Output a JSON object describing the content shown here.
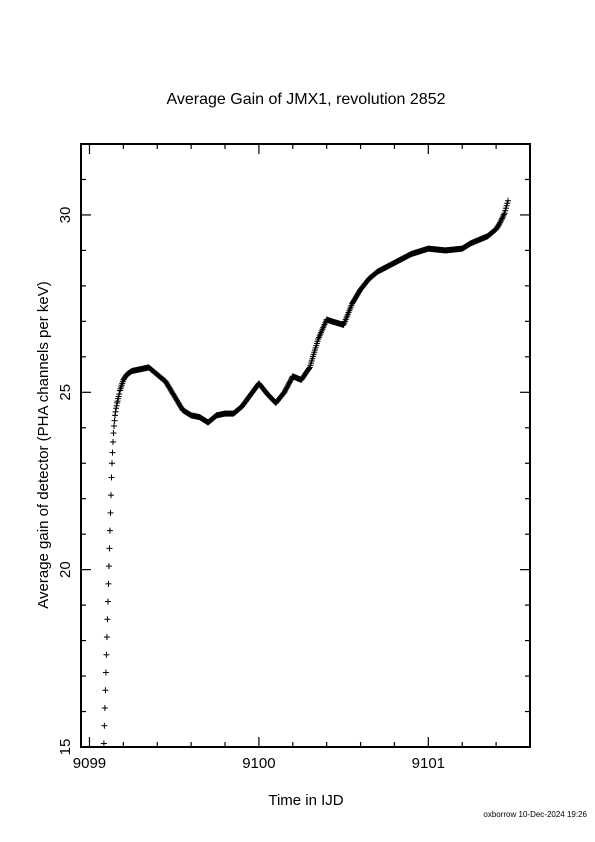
{
  "chart_data": {
    "type": "scatter",
    "title": "Average Gain of JMX1, revolution 2852",
    "xlabel": "Time in IJD",
    "ylabel": "Average gain of detector (PHA channels per keV)",
    "xlim": [
      9098.95,
      9101.6
    ],
    "ylim": [
      15,
      32
    ],
    "xticks": [
      9099,
      9100,
      9101
    ],
    "xtick_labels": [
      "9099",
      "9100",
      "9101"
    ],
    "yticks": [
      15,
      20,
      25,
      30
    ],
    "ytick_labels": [
      "15",
      "20",
      "25",
      "30"
    ],
    "marker": "+",
    "marker_color": "#000000",
    "grid": false,
    "legend": "none",
    "series": [
      {
        "x": [
          9099.085,
          9099.088,
          9099.091,
          9099.094,
          9099.097,
          9099.1,
          9099.103,
          9099.106,
          9099.109,
          9099.112,
          9099.115,
          9099.118,
          9099.121,
          9099.124,
          9099.127,
          9099.13,
          9099.133,
          9099.136,
          9099.139,
          9099.142,
          9099.145,
          9099.148,
          9099.151,
          9099.154,
          9099.157,
          9099.16,
          9099.163,
          9099.166,
          9099.169,
          9099.172,
          9099.175,
          9099.18,
          9099.19,
          9099.2,
          9099.22,
          9099.25,
          9099.3,
          9099.35,
          9099.4,
          9099.45,
          9099.5,
          9099.55,
          9099.6,
          9099.65,
          9099.7,
          9099.75,
          9099.8,
          9099.85,
          9099.9,
          9100.0,
          9100.05,
          9100.1,
          9100.15,
          9100.2,
          9100.25,
          9100.3,
          9100.35,
          9100.4,
          9100.43,
          9100.5,
          9100.55,
          9100.6,
          9100.65,
          9100.7,
          9100.8,
          9100.9,
          9101.0,
          9101.1,
          9101.2,
          9101.25,
          9101.3,
          9101.35,
          9101.4,
          9101.42,
          9101.45,
          9101.47
        ],
        "y": [
          15.1,
          15.6,
          16.1,
          16.6,
          17.1,
          17.6,
          18.1,
          18.6,
          19.1,
          19.6,
          20.1,
          20.6,
          21.1,
          21.6,
          22.1,
          22.6,
          23.0,
          23.3,
          23.6,
          23.85,
          24.05,
          24.2,
          24.35,
          24.45,
          24.55,
          24.62,
          24.7,
          24.75,
          24.82,
          24.88,
          24.95,
          25.05,
          25.2,
          25.35,
          25.5,
          25.6,
          25.65,
          25.7,
          25.5,
          25.3,
          24.9,
          24.5,
          24.35,
          24.3,
          24.15,
          24.35,
          24.4,
          24.4,
          24.6,
          25.25,
          24.95,
          24.7,
          25.0,
          25.45,
          25.35,
          25.7,
          26.5,
          27.05,
          27.0,
          26.9,
          27.5,
          27.9,
          28.2,
          28.4,
          28.65,
          28.9,
          29.05,
          29.0,
          29.05,
          29.2,
          29.3,
          29.4,
          29.6,
          29.75,
          30.05,
          30.4
        ]
      }
    ]
  },
  "footer": {
    "stamp": "oxborrow 10-Dec-2024 19:26"
  }
}
